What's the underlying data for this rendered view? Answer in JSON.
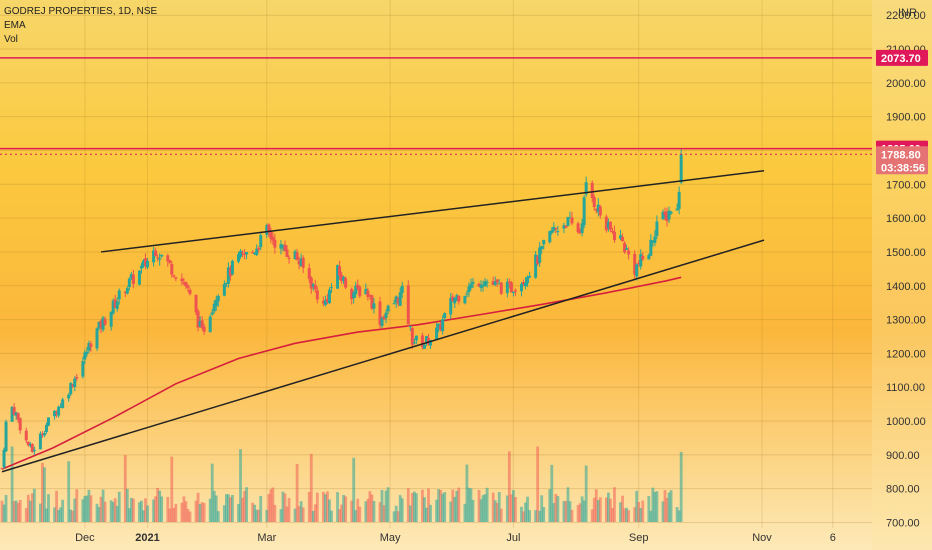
{
  "header": {
    "symbol_line": "GODREJ PROPERTIES, 1D, NSE",
    "indicator_1": "EMA",
    "indicator_2": "Vol"
  },
  "colors": {
    "up": "#26a69a",
    "down": "#ef5350",
    "ema": "#d61f3c",
    "level": "#e0185a",
    "trendline": "#222222",
    "price_badge": "#e57373"
  },
  "chart_data": {
    "type": "candlestick",
    "currency_label": "INR",
    "y_axis_ticks": [
      "2200.00",
      "2100.00",
      "2000.00",
      "1900.00",
      "1800.00",
      "1700.00",
      "1600.00",
      "1500.00",
      "1400.00",
      "1300.00",
      "1200.00",
      "1100.00",
      "1000.00",
      "900.00",
      "800.00",
      "700.00"
    ],
    "x_axis_ticks": [
      "Dec",
      "2021",
      "Mar",
      "May",
      "Jul",
      "Sep",
      "Nov",
      "6"
    ],
    "ylim": [
      680,
      2220
    ],
    "horizontal_levels": [
      {
        "value": 2073.7,
        "label": "2073.70",
        "style": "solid"
      },
      {
        "value": 1805.6,
        "label": "1805.60",
        "style": "solid"
      }
    ],
    "last_price": {
      "value": 1788.8,
      "label": "1788.80",
      "countdown": "03:38:56"
    },
    "trendlines": [
      {
        "name": "upper",
        "from": [
          "2020-12-09",
          1500
        ],
        "to": [
          "2021-11-02",
          1740
        ]
      },
      {
        "name": "lower",
        "from": [
          "2020-10-21",
          850
        ],
        "to": [
          "2021-11-02",
          1535
        ]
      }
    ],
    "ema_points": [
      [
        "2020-10-21",
        858
      ],
      [
        "2020-11-15",
        920
      ],
      [
        "2020-12-15",
        1010
      ],
      [
        "2021-01-15",
        1110
      ],
      [
        "2021-02-15",
        1185
      ],
      [
        "2021-03-15",
        1230
      ],
      [
        "2021-04-15",
        1263
      ],
      [
        "2021-05-15",
        1285
      ],
      [
        "2021-06-15",
        1315
      ],
      [
        "2021-07-15",
        1345
      ],
      [
        "2021-08-15",
        1378
      ],
      [
        "2021-09-15",
        1415
      ],
      [
        "2021-09-22",
        1425
      ]
    ],
    "close_points": [
      [
        "2020-10-21",
        860
      ],
      [
        "2020-10-24",
        1060
      ],
      [
        "2020-10-28",
        1020
      ],
      [
        "2020-11-01",
        950
      ],
      [
        "2020-11-05",
        910
      ],
      [
        "2020-11-12",
        990
      ],
      [
        "2020-11-20",
        1060
      ],
      [
        "2020-11-28",
        1150
      ],
      [
        "2020-12-05",
        1250
      ],
      [
        "2020-12-12",
        1310
      ],
      [
        "2020-12-20",
        1390
      ],
      [
        "2020-12-28",
        1440
      ],
      [
        "2021-01-05",
        1510
      ],
      [
        "2021-01-12",
        1460
      ],
      [
        "2021-01-20",
        1400
      ],
      [
        "2021-01-28",
        1260
      ],
      [
        "2021-02-05",
        1390
      ],
      [
        "2021-02-15",
        1480
      ],
      [
        "2021-02-22",
        1500
      ],
      [
        "2021-03-01",
        1560
      ],
      [
        "2021-03-08",
        1510
      ],
      [
        "2021-03-15",
        1490
      ],
      [
        "2021-03-22",
        1420
      ],
      [
        "2021-03-29",
        1340
      ],
      [
        "2021-04-05",
        1440
      ],
      [
        "2021-04-12",
        1380
      ],
      [
        "2021-04-19",
        1390
      ],
      [
        "2021-04-26",
        1300
      ],
      [
        "2021-05-03",
        1350
      ],
      [
        "2021-05-07",
        1380
      ],
      [
        "2021-05-12",
        1240
      ],
      [
        "2021-05-18",
        1230
      ],
      [
        "2021-05-25",
        1270
      ],
      [
        "2021-06-01",
        1360
      ],
      [
        "2021-06-08",
        1390
      ],
      [
        "2021-06-15",
        1420
      ],
      [
        "2021-06-22",
        1400
      ],
      [
        "2021-06-29",
        1390
      ],
      [
        "2021-07-06",
        1420
      ],
      [
        "2021-07-13",
        1480
      ],
      [
        "2021-07-20",
        1560
      ],
      [
        "2021-07-27",
        1590
      ],
      [
        "2021-08-03",
        1560
      ],
      [
        "2021-08-06",
        1690
      ],
      [
        "2021-08-11",
        1640
      ],
      [
        "2021-08-16",
        1570
      ],
      [
        "2021-08-23",
        1540
      ],
      [
        "2021-08-30",
        1450
      ],
      [
        "2021-09-06",
        1500
      ],
      [
        "2021-09-10",
        1590
      ],
      [
        "2021-09-14",
        1600
      ],
      [
        "2021-09-17",
        1630
      ],
      [
        "2021-09-20",
        1620
      ],
      [
        "2021-09-21",
        1700
      ],
      [
        "2021-09-22",
        1789
      ]
    ]
  }
}
